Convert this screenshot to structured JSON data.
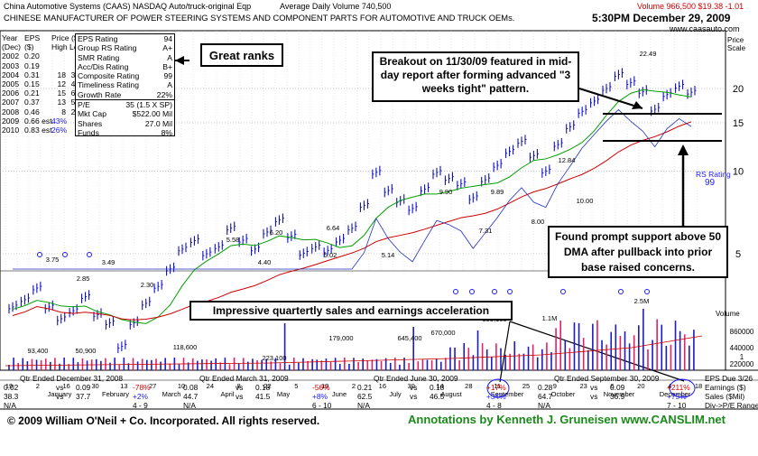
{
  "header": {
    "company_line": "China Automotive Systems  (CAAS)  NASDAQ  Auto/truck-original Eqp",
    "avg_volume": "Average Daily Volume 740,500",
    "price_info": "Volume 966,500  $19.38 -1.01",
    "description": "CHINESE MANUFACTURER OF POWER STEERING SYSTEMS AND COMPONENT PARTS FOR AUTOMOTIVE AND TRUCK OEMs.",
    "timestamp": "5:30PM December 29, 2009",
    "website": "www.caasauto.com",
    "price_scale_label_1": "Price",
    "price_scale_label_2": "Scale"
  },
  "eps_table": {
    "headers": [
      "Year",
      "EPS",
      "Price ($)"
    ],
    "subheaders": [
      "(Dec)",
      "($)",
      "High Low"
    ],
    "rows": [
      {
        "year": "2002",
        "eps": "0.20",
        "high": "",
        "low": ""
      },
      {
        "year": "2003",
        "eps": "0.19",
        "high": "",
        "low": ""
      },
      {
        "year": "2004",
        "eps": "0.31",
        "high": "18",
        "low": "3"
      },
      {
        "year": "2005",
        "eps": "0.15",
        "high": "12",
        "low": "4"
      },
      {
        "year": "2006",
        "eps": "0.21",
        "high": "15",
        "low": "6"
      },
      {
        "year": "2007",
        "eps": "0.37",
        "high": "13",
        "low": "5"
      },
      {
        "year": "2008",
        "eps": "0.46",
        "high": "8",
        "low": "2"
      },
      {
        "year": "2009",
        "eps": "0.66 est.",
        "high": "43%",
        "low": ""
      },
      {
        "year": "2010",
        "eps": "0.83 est.",
        "high": "26%",
        "low": ""
      }
    ]
  },
  "rank_table": {
    "rows": [
      {
        "label": "EPS Rating",
        "value": "94"
      },
      {
        "label": "Group RS Rating",
        "value": "A+"
      },
      {
        "label": "SMR Rating",
        "value": "A"
      },
      {
        "label": "Acc/Dis Rating",
        "value": "B+"
      },
      {
        "label": "Composite Rating",
        "value": "99"
      },
      {
        "label": "Timeliness Rating",
        "value": "A"
      },
      {
        "label": "Growth Rate",
        "value": "22%"
      },
      {
        "label": "P/E",
        "value": "35 (1.5 X SP)"
      },
      {
        "label": "Mkt Cap",
        "value": "$522.00 Mil"
      },
      {
        "label": "Shares",
        "value": "27.0 Mil"
      },
      {
        "label": "Funds",
        "value": "8%"
      }
    ]
  },
  "annotations": {
    "great_ranks": "Great ranks",
    "breakout": "Breakout on 11/30/09 featured in mid-day report after forming advanced \"3 weeks tight\" pattern.",
    "support": "Found prompt support above 50 DMA after pullback into prior base raised concerns.",
    "acceleration": "Impressive quartertly sales and earnings acceleration"
  },
  "price_axis": {
    "ticks": [
      "20",
      "15",
      "10",
      "5"
    ]
  },
  "volume_axis": {
    "label": "Volume",
    "ticks": [
      "860000",
      "440000",
      "220000",
      "1"
    ]
  },
  "rs_label": {
    "line1": "RS Rating",
    "line2": "99"
  },
  "months": [
    "January",
    "February",
    "March",
    "April",
    "May",
    "June",
    "July",
    "August",
    "September",
    "October",
    "November",
    "December"
  ],
  "day_ticks": [
    "19",
    "2",
    "16",
    "30",
    "13",
    "27",
    "10",
    "24",
    "8",
    "22",
    "5",
    "19",
    "2",
    "16",
    "30",
    "14",
    "28",
    "11",
    "25",
    "9",
    "23",
    "6",
    "20",
    "4",
    "18"
  ],
  "price_labels": [
    "3.75",
    "3.49",
    "2.85",
    "2.30",
    "5.58",
    "4.40",
    "6.20",
    "6.64",
    "5.02",
    "5.14",
    "9.90",
    "7.31",
    "9.89",
    "8.00",
    "12.84",
    "10.00",
    "22.49"
  ],
  "volume_labels": [
    "93,400",
    "50,900",
    "118,600",
    "223,100",
    "179,000",
    "645,400",
    "670,000",
    "399,100",
    "1.1M",
    "2.5M"
  ],
  "quarters": [
    {
      "title": "Qtr Ended December 31, 2008",
      "eps_prev": "0.02",
      "eps_cur": "0.09",
      "eps_chg": "-78%",
      "sales_prev": "38.3",
      "sales_cur": "37.7",
      "sales_chg": "+2%",
      "pe_prev": "N/A",
      "pe_cur": "4 - 9"
    },
    {
      "title": "Qtr Ended March 31, 2009",
      "eps_prev": "0.08",
      "eps_cur": "0.18",
      "eps_chg": "-56%",
      "sales_prev": "44.7",
      "sales_cur": "41.5",
      "sales_chg": "+8%",
      "pe_prev": "N/A",
      "pe_cur": "6 - 10"
    },
    {
      "title": "Qtr Ended June 30, 2009",
      "eps_prev": "0.21",
      "eps_cur": "0.18",
      "eps_chg": "+17%",
      "sales_prev": "62.5",
      "sales_cur": "46.5",
      "sales_chg": "+34%",
      "pe_prev": "N/A",
      "pe_cur": "4 - 8"
    },
    {
      "title": "Qtr Ended September 30, 2009",
      "eps_prev": "0.28",
      "eps_cur": "0.09",
      "eps_chg": "+211%",
      "sales_prev": "64.7",
      "sales_cur": "36.9",
      "sales_chg": "+75%",
      "pe_prev": "N/A",
      "pe_cur": "7 - 10"
    }
  ],
  "right_footer": {
    "eps_due": "EPS Due 3/26",
    "earnings": "Earnings ($)",
    "sales": "Sales ($Mil)",
    "div": "Div->P/E Range"
  },
  "footer": {
    "copyright": "© 2009 William O'Neil + Co. Incorporated. All rights reserved.",
    "annotated_by": "Annotations by Kenneth J. Gruneisen www.CANSLIM.net"
  },
  "colors": {
    "price_bar": "#1010c8",
    "ma50": "#00a000",
    "ma200": "#d00000",
    "rs_line": "#2030c0",
    "volume": "#1a1acc",
    "volume_red": "#e0206a",
    "accent_text": "#d00000"
  },
  "chart_data": {
    "type": "bar",
    "series": [
      {
        "name": "",
        "values": [
          3.2,
          3.4,
          3.75,
          3.2,
          2.9,
          3.1,
          3.49,
          3.0,
          2.8,
          2.3,
          2.8,
          3.3,
          3.8,
          4.4,
          5.2,
          5.58,
          5.0,
          5.3,
          6.2,
          5.6,
          5.2,
          6.0,
          6.64,
          5.8,
          5.02,
          5.3,
          5.14,
          5.6,
          6.2,
          7.5,
          9.9,
          8.5,
          7.8,
          7.31,
          8.6,
          9.89,
          9.4,
          9.0,
          8.0,
          9.3,
          10.5,
          11.8,
          12.84,
          11.4,
          10.0,
          12.5,
          14.5,
          16.5,
          18.0,
          20.0,
          22.49,
          21.0,
          19.5,
          16.8,
          19.0,
          20.39,
          19.38
        ]
      }
    ],
    "price_ticks": [
      20,
      15,
      10,
      5
    ],
    "ylim": [
      1.5,
      24
    ]
  }
}
